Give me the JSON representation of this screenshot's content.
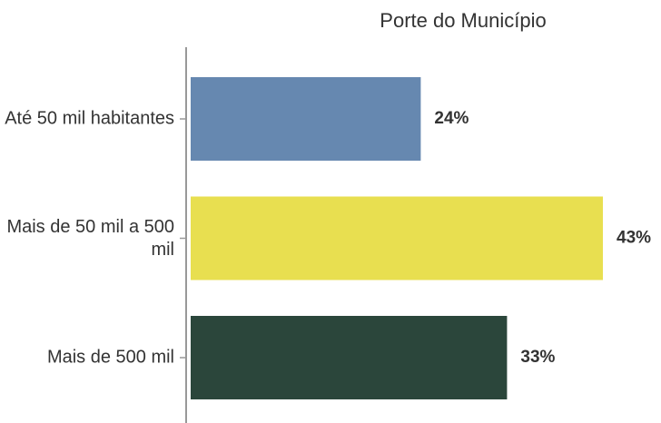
{
  "chart_data": {
    "type": "bar",
    "orientation": "horizontal",
    "title": "Porte do Município",
    "categories": [
      "Até 50 mil habitantes",
      "Mais de 50 mil a 500 mil",
      "Mais de 500 mil"
    ],
    "values": [
      24,
      43,
      33
    ],
    "value_labels": [
      "24%",
      "43%",
      "33%"
    ],
    "colors": [
      "#6688b0",
      "#e8df50",
      "#2b463b"
    ]
  }
}
